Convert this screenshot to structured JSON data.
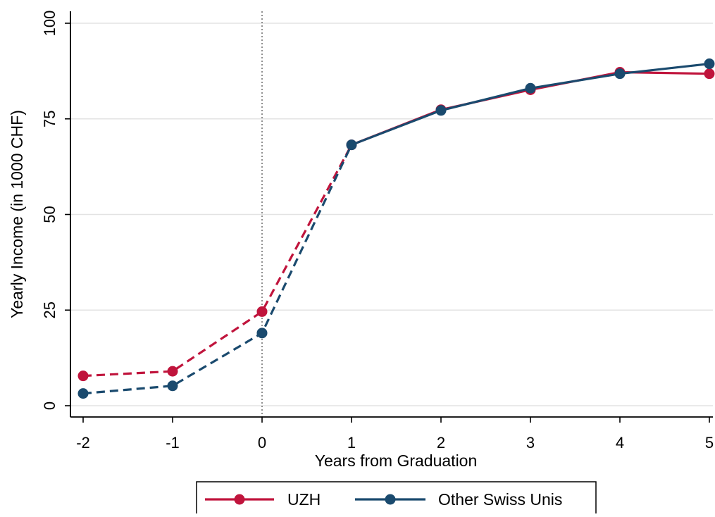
{
  "chart_data": {
    "type": "line",
    "title": "",
    "xlabel": "Years from Graduation",
    "ylabel": "Yearly Income (in 1000 CHF)",
    "x": [
      -2,
      -1,
      0,
      1,
      2,
      3,
      4,
      5
    ],
    "xlim": [
      -2,
      5
    ],
    "ylim": [
      0,
      100
    ],
    "xticks": [
      -2,
      -1,
      0,
      1,
      2,
      3,
      4,
      5
    ],
    "yticks": [
      0,
      25,
      50,
      75,
      100
    ],
    "xtick_labels": [
      "-2",
      "-1",
      "0",
      "1",
      "2",
      "3",
      "4",
      "5"
    ],
    "ytick_labels": [
      "0",
      "25",
      "50",
      "75",
      "100"
    ],
    "grid": "horizontal",
    "reference_line_x": 0,
    "legend_position": "bottom",
    "segments": "dashed from -2 to 1, solid from 1 to 5",
    "series": [
      {
        "name": "UZH",
        "color": "#c0143c",
        "values": [
          7.8,
          9.0,
          24.6,
          68.2,
          77.4,
          82.6,
          87.2,
          86.8
        ]
      },
      {
        "name": "Other Swiss Unis",
        "color": "#1a4a6e",
        "values": [
          3.2,
          5.2,
          19.0,
          68.2,
          77.2,
          83.0,
          86.8,
          89.4
        ]
      }
    ]
  }
}
